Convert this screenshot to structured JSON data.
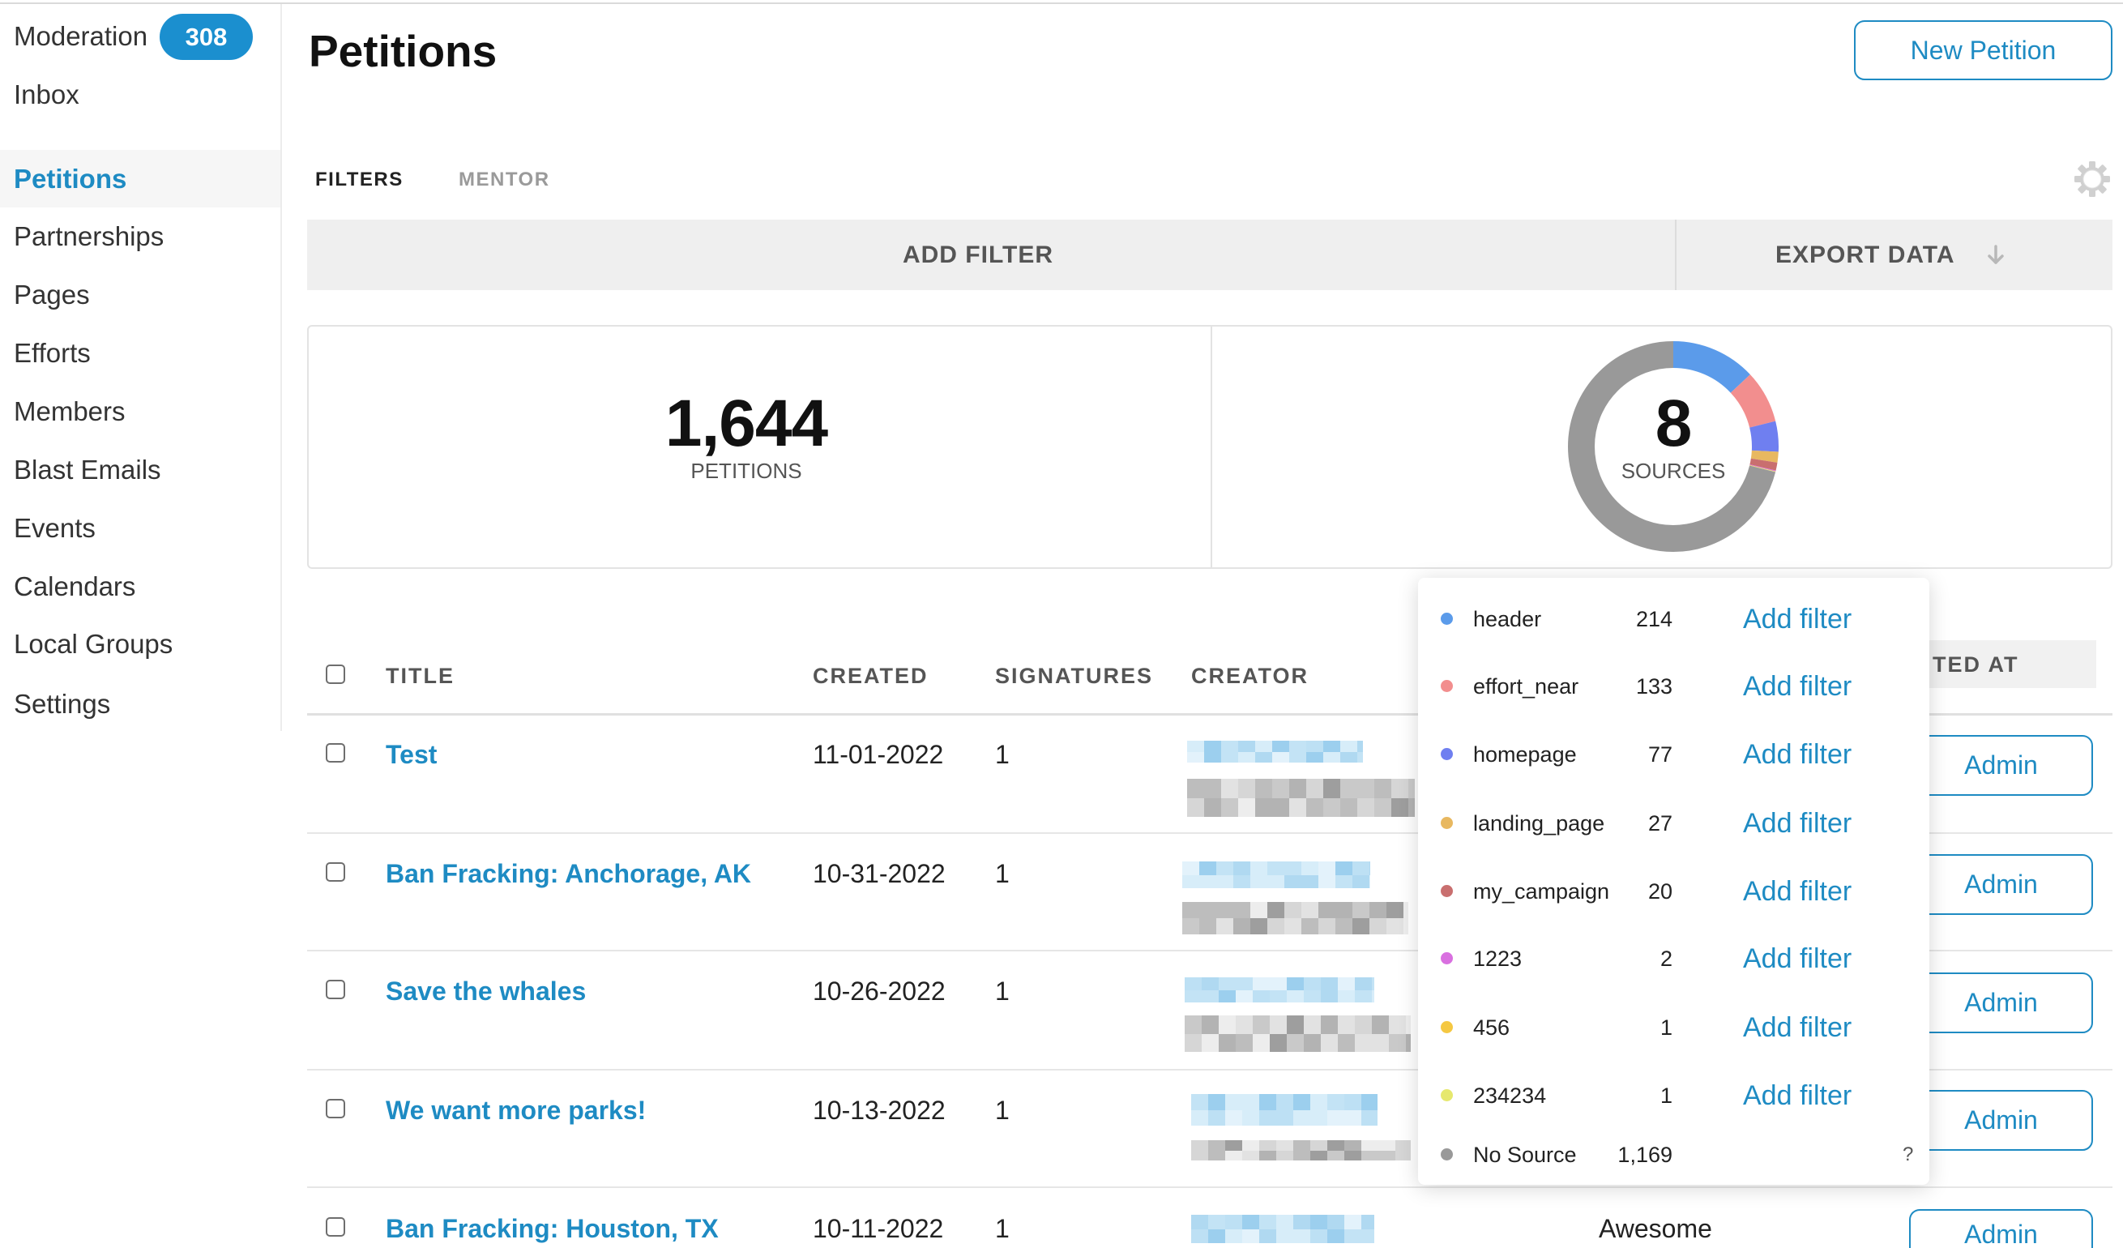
{
  "sidebar": {
    "items": [
      {
        "label": "Moderation",
        "badge": "308"
      },
      {
        "label": "Inbox"
      },
      {
        "label": "Petitions",
        "active": true
      },
      {
        "label": "Partnerships"
      },
      {
        "label": "Pages"
      },
      {
        "label": "Efforts"
      },
      {
        "label": "Members"
      },
      {
        "label": "Blast Emails"
      },
      {
        "label": "Events"
      },
      {
        "label": "Calendars"
      },
      {
        "label": "Local Groups"
      },
      {
        "label": "Settings"
      }
    ]
  },
  "header": {
    "title": "Petitions",
    "new_button": "New Petition"
  },
  "tabs": [
    {
      "label": "FILTERS",
      "active": true
    },
    {
      "label": "MENTOR"
    }
  ],
  "toolbar": {
    "add_filter": "ADD FILTER",
    "export_data": "EXPORT DATA"
  },
  "icons": {
    "settings": "gear-icon",
    "export": "arrow-down-icon",
    "checkbox": "checkbox-icon"
  },
  "stats": {
    "petitions_count": "1,644",
    "petitions_label": "PETITIONS",
    "sources_count": "8",
    "sources_label": "SOURCES"
  },
  "sources_popup": {
    "add_filter_label": "Add filter",
    "items": [
      {
        "name": "header",
        "count": "214",
        "color": "#5b9bea"
      },
      {
        "name": "effort_near",
        "count": "133",
        "color": "#f28e8e"
      },
      {
        "name": "homepage",
        "count": "77",
        "color": "#6f7ff0"
      },
      {
        "name": "landing_page",
        "count": "27",
        "color": "#e8b860"
      },
      {
        "name": "my_campaign",
        "count": "20",
        "color": "#c96f6f"
      },
      {
        "name": "1223",
        "count": "2",
        "color": "#d970e0"
      },
      {
        "name": "456",
        "count": "1",
        "color": "#f5c842"
      },
      {
        "name": "234234",
        "count": "1",
        "color": "#e6e86e"
      },
      {
        "name": "No Source",
        "count": "1,169",
        "color": "#999999",
        "help": "?"
      }
    ]
  },
  "table": {
    "columns": [
      "TITLE",
      "CREATED",
      "SIGNATURES",
      "CREATOR",
      "TED AT"
    ],
    "admin_label": "Admin",
    "rows": [
      {
        "title": "Test",
        "created": "11-01-2022",
        "signatures": "1"
      },
      {
        "title": "Ban Fracking: Anchorage, AK",
        "created": "10-31-2022",
        "signatures": "1"
      },
      {
        "title": "Save the whales",
        "created": "10-26-2022",
        "signatures": "1"
      },
      {
        "title": "We want more parks!",
        "created": "10-13-2022",
        "signatures": "1"
      },
      {
        "title": "Ban Fracking: Houston, TX",
        "created": "10-11-2022",
        "signatures": "1",
        "extra": "Awesome"
      }
    ]
  },
  "colors": {
    "accent": "#1e8bc3",
    "badge": "#1b8fcf"
  }
}
